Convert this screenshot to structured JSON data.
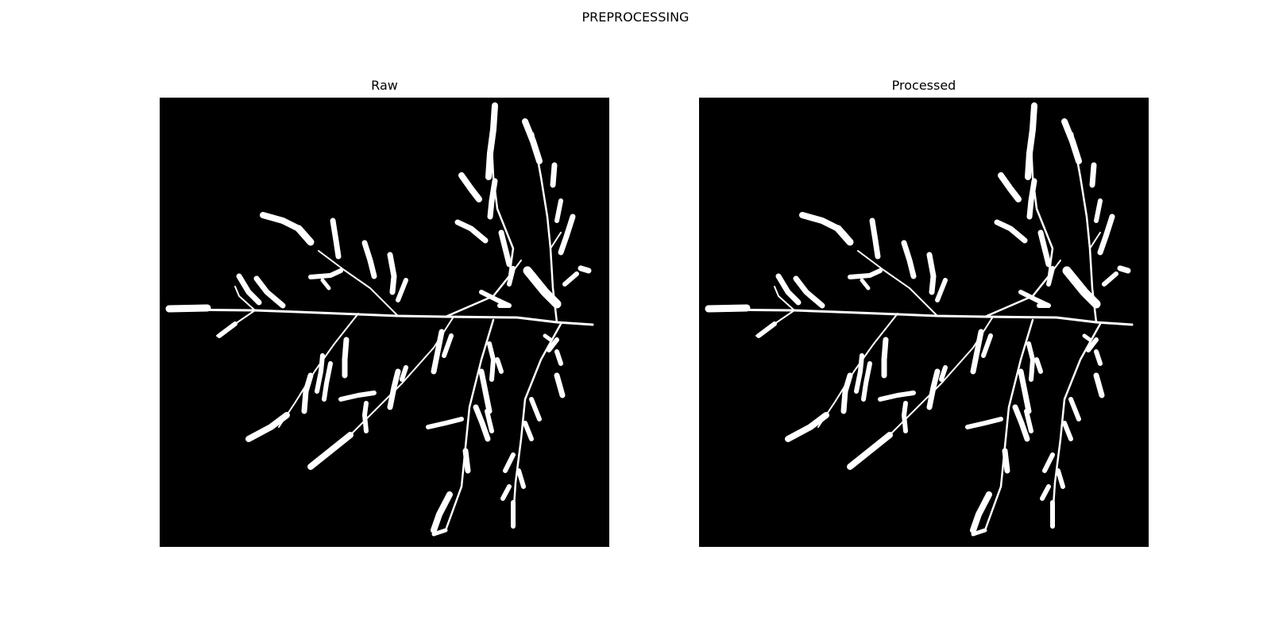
{
  "figure": {
    "title": "PREPROCESSING",
    "panels": [
      {
        "id": "left",
        "title": "Raw",
        "variant": "raw",
        "image": "root-system-mask"
      },
      {
        "id": "right",
        "title": "Processed",
        "variant": "processed",
        "image": "root-system-mask"
      }
    ],
    "colors": {
      "background": "#000000",
      "foreground": "#ffffff"
    }
  }
}
